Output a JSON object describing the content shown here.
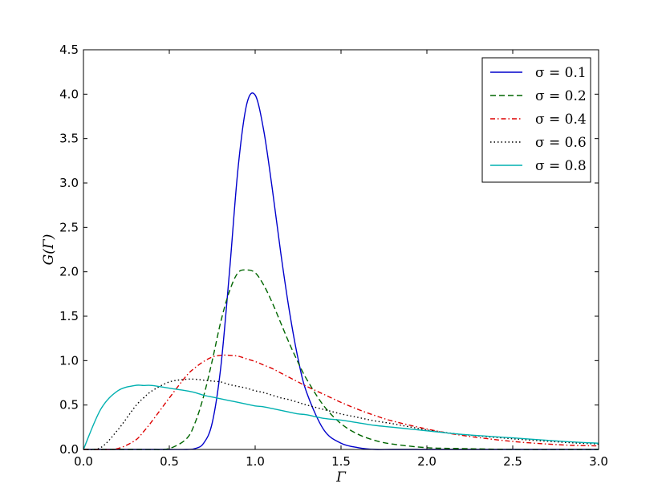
{
  "chart_data": {
    "type": "line",
    "xlabel": "Γ",
    "ylabel": "G(Γ)",
    "xlim": [
      0.0,
      3.0
    ],
    "ylim": [
      0.0,
      4.5
    ],
    "xticks": [
      "0.0",
      "0.5",
      "1.0",
      "1.5",
      "2.0",
      "2.5",
      "3.0"
    ],
    "yticks": [
      "0.0",
      "0.5",
      "1.0",
      "1.5",
      "2.0",
      "2.5",
      "3.0",
      "3.5",
      "4.0",
      "4.5"
    ],
    "legend_position": "top-right",
    "grid": false,
    "x": [
      0.0,
      0.1,
      0.2,
      0.3,
      0.35,
      0.4,
      0.5,
      0.6,
      0.65,
      0.7,
      0.75,
      0.8,
      0.85,
      0.9,
      0.95,
      1.0,
      1.05,
      1.1,
      1.15,
      1.2,
      1.25,
      1.3,
      1.4,
      1.5,
      1.6,
      1.7,
      1.8,
      2.0,
      2.2,
      2.5,
      2.8,
      3.0
    ],
    "series": [
      {
        "name": "σ = 0.1",
        "color": "#0000cc",
        "dash": "solid",
        "values": [
          0.0,
          0.0,
          0.0,
          0.0,
          0.0,
          0.0,
          0.0,
          0.0,
          0.01,
          0.07,
          0.3,
          0.93,
          1.99,
          3.16,
          3.88,
          3.99,
          3.59,
          2.93,
          2.2,
          1.55,
          1.02,
          0.64,
          0.22,
          0.07,
          0.02,
          0.0,
          0.0,
          0.0,
          0.0,
          0.0,
          0.0,
          0.0
        ]
      },
      {
        "name": "σ = 0.2",
        "color": "#006600",
        "dash": "dashed",
        "values": [
          0.0,
          0.0,
          0.0,
          0.0,
          0.0,
          0.0,
          0.01,
          0.12,
          0.3,
          0.6,
          1.0,
          1.44,
          1.78,
          1.99,
          2.02,
          1.99,
          1.85,
          1.65,
          1.42,
          1.19,
          0.98,
          0.79,
          0.49,
          0.29,
          0.17,
          0.1,
          0.06,
          0.02,
          0.01,
          0.0,
          0.0,
          0.0
        ]
      },
      {
        "name": "σ = 0.4",
        "color": "#dd0000",
        "dash": "dashdot",
        "values": [
          0.0,
          0.0,
          0.01,
          0.1,
          0.2,
          0.32,
          0.58,
          0.83,
          0.92,
          0.99,
          1.04,
          1.06,
          1.06,
          1.05,
          1.02,
          0.99,
          0.95,
          0.91,
          0.86,
          0.81,
          0.76,
          0.71,
          0.62,
          0.53,
          0.45,
          0.38,
          0.32,
          0.23,
          0.16,
          0.09,
          0.05,
          0.04
        ]
      },
      {
        "name": "σ = 0.6",
        "color": "#000000",
        "dash": "dotted",
        "values": [
          0.0,
          0.02,
          0.22,
          0.48,
          0.58,
          0.66,
          0.76,
          0.79,
          0.79,
          0.78,
          0.77,
          0.76,
          0.73,
          0.71,
          0.69,
          0.66,
          0.64,
          0.61,
          0.58,
          0.56,
          0.53,
          0.5,
          0.45,
          0.4,
          0.36,
          0.32,
          0.29,
          0.22,
          0.17,
          0.12,
          0.08,
          0.06
        ]
      },
      {
        "name": "σ = 0.8",
        "color": "#00b0b0",
        "dash": "solid",
        "values": [
          0.0,
          0.45,
          0.66,
          0.72,
          0.72,
          0.72,
          0.69,
          0.66,
          0.64,
          0.61,
          0.59,
          0.57,
          0.55,
          0.53,
          0.51,
          0.49,
          0.48,
          0.46,
          0.44,
          0.42,
          0.4,
          0.39,
          0.35,
          0.33,
          0.3,
          0.27,
          0.25,
          0.21,
          0.17,
          0.13,
          0.09,
          0.07
        ]
      }
    ]
  }
}
